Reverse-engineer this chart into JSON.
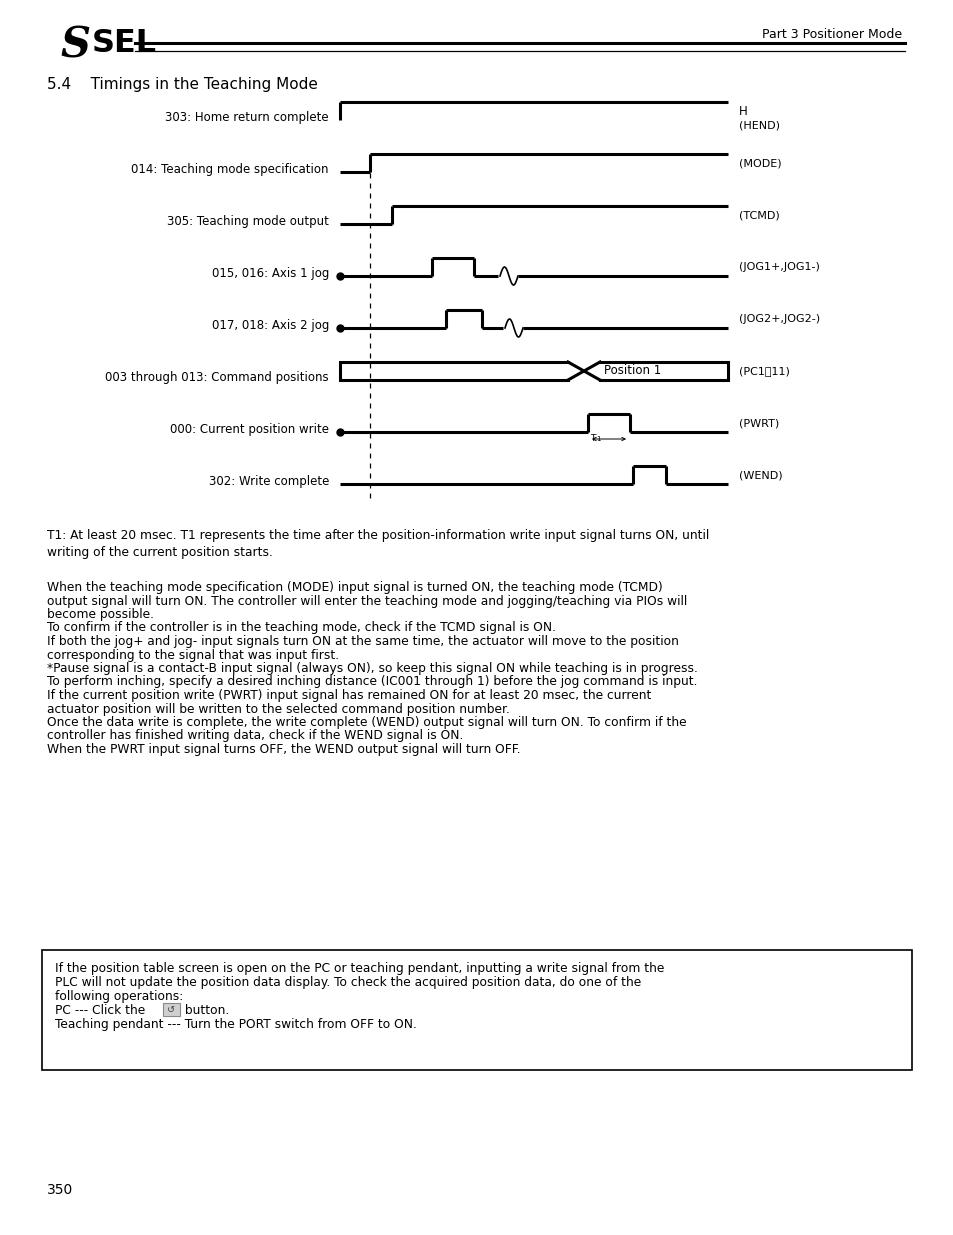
{
  "page_header_right": "Part 3 Positioner Mode",
  "section_title": "5.4    Timings in the Teaching Mode",
  "bg_color": "#ffffff",
  "signal_labels": [
    "303: Home return complete",
    "014: Teaching mode specification",
    "305: Teaching mode output",
    "015, 016: Axis 1 jog",
    "017, 018: Axis 2 jog",
    "003 through 013: Command positions",
    "000: Current position write",
    "302: Write complete"
  ],
  "signal_tags": [
    "H\n(HEND)",
    "(MODE)",
    "(TCMD)",
    "(JOG1+,JOG1-)",
    "(JOG2+,JOG2-)",
    "(PC1~11)",
    "(PWRT)",
    "(WEND)"
  ],
  "t1_note": "T1: At least 20 msec. T1 represents the time after the position-information write input signal turns ON, until\nwriting of the current position starts.",
  "body_text": "When the teaching mode specification (MODE) input signal is turned ON, the teaching mode (TCMD)\noutput signal will turn ON. The controller will enter the teaching mode and jogging/teaching via PIOs will\nbecome possible.\nTo confirm if the controller is in the teaching mode, check if the TCMD signal is ON.\nIf both the jog+ and jog- input signals turn ON at the same time, the actuator will move to the position\ncorresponding to the signal that was input first.\n*Pause signal is a contact-B input signal (always ON), so keep this signal ON while teaching is in progress.\nTo perform inching, specify a desired inching distance (IC001 through 1) before the jog command is input.\nIf the current position write (PWRT) input signal has remained ON for at least 20 msec, the current\nactuator position will be written to the selected command position number.\nOnce the data write is complete, the write complete (WEND) output signal will turn ON. To confirm if the\ncontroller has finished writing data, check if the WEND signal is ON.\nWhen the PWRT input signal turns OFF, the WEND output signal will turn OFF.",
  "box_line1": "If the position table screen is open on the PC or teaching pendant, inputting a write signal from the",
  "box_line2": "PLC will not update the position data display. To check the acquired position data, do one of the",
  "box_line3": "following operations:",
  "box_line4a": "PC --- Click the ",
  "box_line4b": " button.",
  "box_line5": "Teaching pendant --- Turn the PORT switch from OFF to ON.",
  "page_number": "350"
}
